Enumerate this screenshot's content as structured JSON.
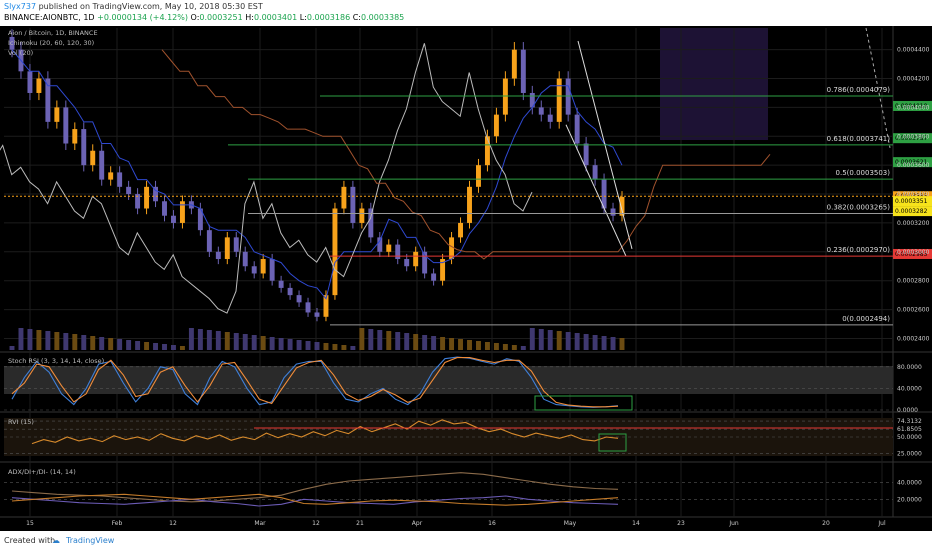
{
  "header": {
    "author": "Slyx737",
    "published": "published on TradingView.com, May 10, 2018 05:30 EST",
    "symbol": "BINANCE:AIONBTC, 1D",
    "change": "+0.0000134 (+4.12%)",
    "ohlc": [
      {
        "key": "O:",
        "val": "0.0003251"
      },
      {
        "key": "H:",
        "val": "0.0003401"
      },
      {
        "key": "L:",
        "val": "0.0003186"
      },
      {
        "key": "C:",
        "val": "0.0003385"
      }
    ]
  },
  "legend": {
    "title": "Aion / Bitcoin, 1D, BINANCE",
    "ichimoku": "Ichimoku (20, 60, 120, 30)",
    "vol": "Vol (20)"
  },
  "footer": {
    "created": "Created with",
    "brand": "TradingView"
  },
  "colors": {
    "bull": "#f7a21b",
    "bear": "#6c63b5",
    "fib": "#2ea043",
    "red": "#e53935",
    "white": "#bbbbbb",
    "blue": "#2f49d1"
  },
  "chart_data": [
    {
      "type": "candlestick",
      "title": "Aion / Bitcoin, 1D, BINANCE",
      "x_ticks": [
        "15",
        "Feb",
        "12",
        "Mar",
        "12",
        "21",
        "Apr",
        "16",
        "May",
        "14",
        "23",
        "Jun",
        "20",
        "Jul"
      ],
      "y_ticks": [
        "0.0004400",
        "0.0004200",
        "0.0004000",
        "0.0003800",
        "0.0003600",
        "0.0003400",
        "0.0003200",
        "0.0003000",
        "0.0002800",
        "0.0002600",
        "0.0002400"
      ],
      "ylim": [
        0.000232,
        0.000455
      ],
      "fib_levels": [
        {
          "label": "0.786(0.0004079)",
          "value": 0.0004079
        },
        {
          "label": "0.618(0.0003741)",
          "value": 0.0003741
        },
        {
          "label": "0.5(0.0003503)",
          "value": 0.0003503
        },
        {
          "label": "0.382(0.0003265)",
          "value": 0.0003265
        },
        {
          "label": "0.236(0.0002970)",
          "value": 0.000297
        },
        {
          "label": "0(0.0002494)",
          "value": 0.0002494
        }
      ],
      "price_tags": [
        {
          "text": "0.0004010",
          "value": 0.000401,
          "color": "#2ea043"
        },
        {
          "text": "0.0003787",
          "value": 0.0003787,
          "color": "#2ea043"
        },
        {
          "text": "0.0003621",
          "value": 0.0003621,
          "color": "#2ea043"
        },
        {
          "text": "0.0003385",
          "value": 0.0003385,
          "color": "#f7a21b"
        },
        {
          "text": "0.0003351",
          "value": 0.0003351,
          "color": "#f7e31b"
        },
        {
          "text": "0.0003282",
          "value": 0.0003282,
          "color": "#f7e31b"
        },
        {
          "text": "0.0002985",
          "value": 0.0002985,
          "color": "#e53935"
        }
      ],
      "close_approx": [
        0.00044,
        0.000425,
        0.00041,
        0.00042,
        0.00039,
        0.0004,
        0.000375,
        0.000385,
        0.00036,
        0.00037,
        0.00035,
        0.000355,
        0.000345,
        0.00034,
        0.00033,
        0.000345,
        0.000335,
        0.000325,
        0.00032,
        0.000335,
        0.00033,
        0.000315,
        0.0003,
        0.000295,
        0.00031,
        0.0003,
        0.00029,
        0.000285,
        0.000295,
        0.00028,
        0.000275,
        0.00027,
        0.000265,
        0.000258,
        0.000255,
        0.00027,
        0.00033,
        0.000345,
        0.00032,
        0.00033,
        0.00031,
        0.0003,
        0.000305,
        0.000295,
        0.00029,
        0.0003,
        0.000285,
        0.00028,
        0.000295,
        0.00031,
        0.00032,
        0.000345,
        0.00036,
        0.00038,
        0.000395,
        0.00042,
        0.00044,
        0.00041,
        0.0004,
        0.000395,
        0.00039,
        0.00042,
        0.000395,
        0.000375,
        0.00036,
        0.00035,
        0.00033,
        0.000325,
        0.000338
      ]
    },
    {
      "type": "line",
      "title": "Stoch RSI (3, 3, 14, 14, close)",
      "y_ticks": [
        "80.0000",
        "40.0000",
        "0.0000"
      ],
      "ylim": [
        0,
        100
      ],
      "series": [
        {
          "values": [
            20,
            60,
            90,
            70,
            30,
            10,
            40,
            85,
            90,
            50,
            15,
            40,
            80,
            75,
            30,
            10,
            60,
            90,
            80,
            40,
            10,
            15,
            60,
            85,
            90,
            90,
            50,
            20,
            15,
            30,
            40,
            20,
            10,
            30,
            70,
            95,
            98,
            96,
            90,
            85,
            95,
            90,
            60,
            20,
            10,
            8,
            6,
            5,
            6,
            8
          ]
        },
        {
          "values": [
            30,
            50,
            85,
            80,
            45,
            15,
            30,
            75,
            92,
            65,
            25,
            30,
            70,
            80,
            45,
            15,
            45,
            85,
            88,
            55,
            20,
            12,
            45,
            78,
            88,
            92,
            65,
            30,
            18,
            25,
            38,
            28,
            14,
            22,
            55,
            88,
            97,
            97,
            92,
            88,
            92,
            92,
            72,
            35,
            14,
            9,
            7,
            6,
            6,
            7
          ]
        }
      ]
    },
    {
      "type": "line",
      "title": "RVI (15)",
      "y_ticks": [
        "74.3132",
        "61.8505",
        "50.0000",
        "25.0000"
      ],
      "ylim": [
        15,
        85
      ],
      "series": [
        {
          "values": [
            40,
            46,
            42,
            50,
            44,
            48,
            43,
            52,
            46,
            50,
            45,
            55,
            48,
            44,
            52,
            47,
            53,
            45,
            50,
            46,
            56,
            49,
            55,
            50,
            58,
            52,
            60,
            55,
            66,
            58,
            64,
            70,
            62,
            74,
            68,
            76,
            70,
            72,
            64,
            58,
            62,
            55,
            50,
            56,
            52,
            48,
            53,
            46,
            44,
            50,
            48
          ]
        }
      ]
    },
    {
      "type": "line",
      "title": "ADX/DI+/DI- (14, 14)",
      "y_ticks": [
        "40.0000",
        "20.0000"
      ],
      "ylim": [
        0,
        60
      ],
      "series": [
        {
          "values": [
            30,
            28,
            26,
            25,
            24,
            22,
            20,
            18,
            17,
            18,
            20,
            22,
            25,
            32,
            38,
            42,
            44,
            46,
            48,
            50,
            52,
            50,
            46,
            42,
            38,
            35,
            33,
            32
          ]
        },
        {
          "values": [
            22,
            20,
            18,
            16,
            15,
            14,
            16,
            18,
            20,
            17,
            15,
            12,
            14,
            20,
            18,
            16,
            15,
            14,
            17,
            19,
            21,
            22,
            24,
            20,
            18,
            16,
            15,
            14
          ]
        },
        {
          "values": [
            18,
            20,
            22,
            24,
            25,
            26,
            24,
            22,
            20,
            22,
            24,
            26,
            22,
            15,
            14,
            16,
            18,
            19,
            18,
            17,
            15,
            14,
            13,
            14,
            16,
            18,
            20,
            22
          ]
        }
      ]
    }
  ]
}
